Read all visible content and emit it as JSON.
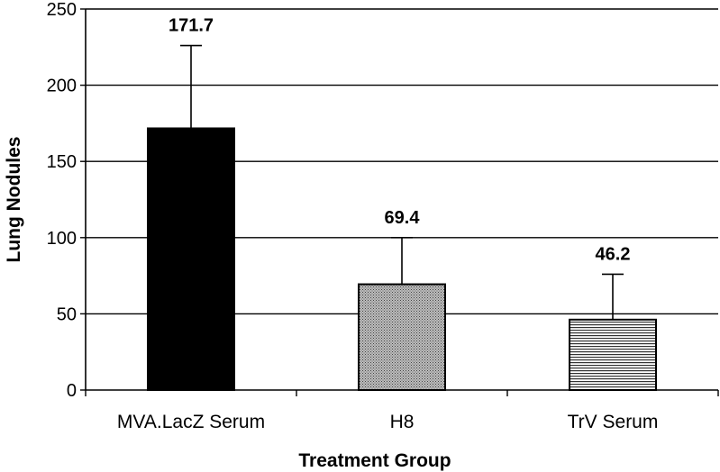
{
  "chart_data": {
    "type": "bar",
    "xlabel": "Treatment Group",
    "ylabel": "Lung Nodules",
    "ylim": [
      0,
      250
    ],
    "yticks": [
      0,
      50,
      100,
      150,
      200,
      250
    ],
    "grid": true,
    "categories": [
      "MVA.LacZ Serum",
      "H8",
      "TrV Serum"
    ],
    "values": [
      171.7,
      69.4,
      46.2
    ],
    "value_labels": [
      "171.7",
      "69.4",
      "46.2"
    ],
    "error_upper": [
      226,
      100,
      76
    ],
    "bar_fills": [
      "solid-black",
      "dotted-gray",
      "horizontal-stripes"
    ]
  }
}
